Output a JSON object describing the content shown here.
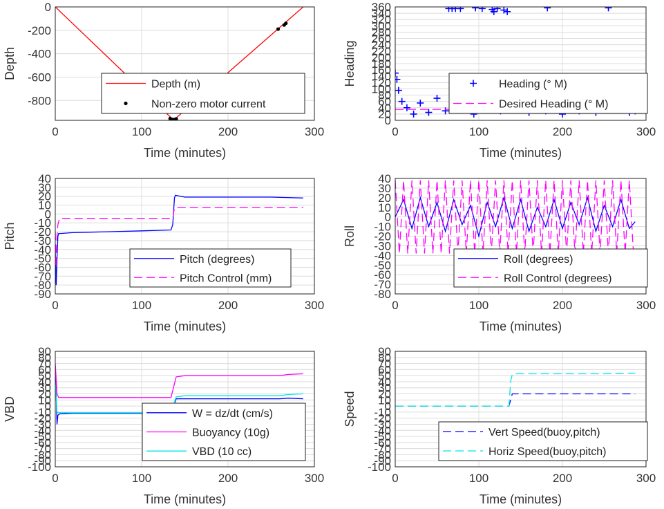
{
  "colors": {
    "red": "#ff0000",
    "blue": "#0000ff",
    "magenta": "#ff00ff",
    "cyan": "#00e5e5",
    "black": "#000000"
  },
  "chart_data": [
    {
      "id": "depth",
      "type": "line",
      "xlabel": "Time (minutes)",
      "ylabel": "Depth",
      "xlim": [
        0,
        300
      ],
      "ylim": [
        -970,
        0
      ],
      "xticks": [
        0,
        100,
        200,
        300
      ],
      "yticks": [
        0,
        -200,
        -400,
        -600,
        -800
      ],
      "grid": true,
      "legend_placement": "lower-right",
      "series": [
        {
          "name": "Depth (m)",
          "style": "solid",
          "color": "red",
          "x": [
            0,
            137,
            287
          ],
          "y": [
            0,
            -968,
            0
          ]
        },
        {
          "name": "Non-zero motor current",
          "style": "dots",
          "color": "black",
          "x": [
            133,
            135,
            136,
            138,
            140,
            258,
            265,
            267
          ],
          "y": [
            -955,
            -962,
            -965,
            -963,
            -958,
            -190,
            -155,
            -140
          ]
        }
      ]
    },
    {
      "id": "heading",
      "type": "scatter",
      "xlabel": "Time (minutes)",
      "ylabel": "Heading",
      "xlim": [
        0,
        300
      ],
      "ylim": [
        0,
        360
      ],
      "xticks": [
        0,
        100,
        200,
        300
      ],
      "yticks": [
        0,
        20,
        40,
        60,
        80,
        100,
        120,
        140,
        160,
        180,
        200,
        220,
        240,
        260,
        280,
        300,
        320,
        340,
        360
      ],
      "grid": true,
      "legend_placement": "right",
      "series": [
        {
          "name": "Heading (° M)",
          "style": "plus",
          "color": "blue",
          "x": [
            0,
            2,
            4,
            8,
            14,
            22,
            30,
            40,
            50,
            60,
            64,
            68,
            72,
            78,
            86,
            94,
            96,
            104,
            110,
            116,
            118,
            122,
            126,
            130,
            134,
            140,
            150,
            160,
            170,
            180,
            182,
            190,
            200,
            210,
            220,
            230,
            240,
            250,
            255,
            260,
            270,
            280,
            287
          ],
          "y": [
            150,
            130,
            95,
            60,
            40,
            20,
            55,
            25,
            70,
            30,
            355,
            355,
            355,
            355,
            45,
            20,
            357,
            355,
            60,
            352,
            345,
            355,
            30,
            350,
            345,
            40,
            75,
            25,
            60,
            30,
            357,
            80,
            20,
            65,
            30,
            85,
            25,
            70,
            357,
            40,
            80,
            25,
            30
          ]
        },
        {
          "name": "Desired Heading (° M)",
          "style": "dashed",
          "color": "magenta",
          "x": [
            0,
            287
          ],
          "y": [
            35,
            35
          ]
        }
      ]
    },
    {
      "id": "pitch",
      "type": "line",
      "xlabel": "Time (minutes)",
      "ylabel": "Pitch",
      "xlim": [
        0,
        300
      ],
      "ylim": [
        -90,
        40
      ],
      "xticks": [
        0,
        100,
        200,
        300
      ],
      "yticks": [
        40,
        30,
        20,
        10,
        0,
        -10,
        -20,
        -30,
        -40,
        -50,
        -60,
        -70,
        -80,
        -90
      ],
      "grid": true,
      "legend_placement": "lower-right",
      "series": [
        {
          "name": "Pitch (degrees)",
          "style": "solid",
          "color": "blue",
          "x": [
            0,
            1,
            2,
            3,
            4,
            6,
            20,
            60,
            100,
            134,
            136,
            138,
            139,
            150,
            200,
            250,
            287
          ],
          "y": [
            -40,
            -80,
            -50,
            -25,
            -22,
            -22,
            -21,
            -20,
            -19,
            -18,
            -12,
            18,
            21,
            19,
            19,
            19,
            18
          ]
        },
        {
          "name": "Pitch Control (mm)",
          "style": "dashed",
          "color": "magenta",
          "x": [
            0,
            1,
            2,
            3,
            5,
            134,
            136,
            138,
            287
          ],
          "y": [
            -20,
            -60,
            -25,
            -12,
            -5,
            -5,
            -5,
            7,
            7
          ]
        }
      ]
    },
    {
      "id": "roll",
      "type": "line",
      "xlabel": "Time (minutes)",
      "ylabel": "Roll",
      "xlim": [
        0,
        300
      ],
      "ylim": [
        -80,
        40
      ],
      "xticks": [
        0,
        100,
        200,
        300
      ],
      "yticks": [
        40,
        30,
        20,
        10,
        0,
        -10,
        -20,
        -30,
        -40,
        -50,
        -60,
        -70,
        -80
      ],
      "grid": true,
      "legend_placement": "lower-right",
      "series": [
        {
          "name": "Roll (degrees)",
          "style": "solid",
          "color": "blue",
          "x": [
            0,
            10,
            20,
            30,
            40,
            50,
            60,
            70,
            80,
            90,
            100,
            110,
            120,
            130,
            140,
            150,
            160,
            170,
            180,
            190,
            200,
            210,
            220,
            230,
            240,
            250,
            260,
            270,
            280,
            287
          ],
          "y": [
            0,
            18,
            -12,
            20,
            -10,
            15,
            -15,
            18,
            -8,
            12,
            -20,
            15,
            -10,
            20,
            -12,
            18,
            -15,
            10,
            -10,
            18,
            -12,
            15,
            -8,
            20,
            -15,
            12,
            -10,
            18,
            -12,
            -5
          ]
        },
        {
          "name": "Roll Control (degrees)",
          "style": "dashed",
          "color": "magenta",
          "x": [
            0,
            5,
            10,
            15,
            20,
            25,
            30,
            35,
            40,
            45,
            50,
            55,
            60,
            65,
            70,
            75,
            80,
            85,
            90,
            95,
            100,
            105,
            110,
            115,
            120,
            125,
            130,
            135,
            140,
            145,
            150,
            155,
            160,
            165,
            170,
            175,
            180,
            185,
            190,
            195,
            200,
            205,
            210,
            215,
            220,
            225,
            230,
            235,
            240,
            245,
            250,
            255,
            260,
            265,
            270,
            275,
            280,
            285
          ],
          "y": [
            38,
            -38,
            38,
            -38,
            38,
            -38,
            38,
            -38,
            38,
            -38,
            38,
            -38,
            38,
            -38,
            38,
            -38,
            38,
            -38,
            38,
            -38,
            38,
            -38,
            38,
            -38,
            38,
            -38,
            38,
            -38,
            38,
            -38,
            38,
            -38,
            38,
            -38,
            38,
            -38,
            38,
            -38,
            38,
            -38,
            38,
            -38,
            38,
            -38,
            38,
            -38,
            38,
            -38,
            38,
            -38,
            38,
            -38,
            38,
            -38,
            38,
            -38,
            38,
            -38
          ]
        }
      ]
    },
    {
      "id": "vbd",
      "type": "line",
      "xlabel": "Time (minutes)",
      "ylabel": "VBD",
      "xlim": [
        0,
        300
      ],
      "ylim": [
        -100,
        90
      ],
      "xticks": [
        0,
        100,
        200,
        300
      ],
      "yticks": [
        90,
        80,
        70,
        60,
        50,
        40,
        30,
        20,
        10,
        0,
        -10,
        -20,
        -30,
        -40,
        -50,
        -60,
        -70,
        -80,
        -90,
        -100
      ],
      "grid": true,
      "legend_placement": "lower-right",
      "series": [
        {
          "name": "W = dz/dt (cm/s)",
          "style": "solid",
          "color": "blue",
          "x": [
            0,
            1,
            2,
            3,
            5,
            20,
            60,
            100,
            134,
            137,
            140,
            200,
            260,
            270,
            287
          ],
          "y": [
            55,
            20,
            -30,
            -15,
            -13,
            -12,
            -12,
            -12,
            -12,
            0,
            12,
            12,
            12,
            13,
            12
          ]
        },
        {
          "name": "Buoyancy (10g)",
          "style": "solid",
          "color": "magenta",
          "x": [
            0,
            2,
            4,
            134,
            140,
            150,
            200,
            260,
            270,
            287
          ],
          "y": [
            70,
            20,
            14,
            14,
            48,
            50,
            50,
            50,
            52,
            53
          ]
        },
        {
          "name": "VBD (10 cc)",
          "style": "solid",
          "color": "cyan",
          "x": [
            0,
            2,
            4,
            134,
            140,
            150,
            200,
            260,
            270,
            287
          ],
          "y": [
            40,
            -10,
            -11,
            -11,
            15,
            17,
            17,
            17,
            19,
            20
          ]
        }
      ]
    },
    {
      "id": "speed",
      "type": "line",
      "xlabel": "Time (minutes)",
      "ylabel": "Speed",
      "xlim": [
        0,
        300
      ],
      "ylim": [
        -100,
        90
      ],
      "xticks": [
        0,
        100,
        200,
        300
      ],
      "yticks": [
        90,
        80,
        70,
        60,
        50,
        40,
        30,
        20,
        10,
        0,
        -10,
        -20,
        -30,
        -40,
        -50,
        -60,
        -70,
        -80,
        -90,
        -100
      ],
      "grid": true,
      "legend_placement": "lower-right",
      "series": [
        {
          "name": "Vert Speed(buoy,pitch)",
          "style": "dashed",
          "color": "blue",
          "x": [
            0,
            136,
            138,
            140,
            145,
            200,
            250,
            287
          ],
          "y": [
            0,
            0,
            10,
            20,
            20,
            20,
            20,
            20
          ]
        },
        {
          "name": "Horiz Speed(buoy,pitch)",
          "style": "dashed",
          "color": "cyan",
          "x": [
            0,
            136,
            138,
            140,
            145,
            200,
            250,
            287
          ],
          "y": [
            0,
            0,
            40,
            52,
            53,
            53,
            53,
            54
          ]
        }
      ]
    }
  ]
}
